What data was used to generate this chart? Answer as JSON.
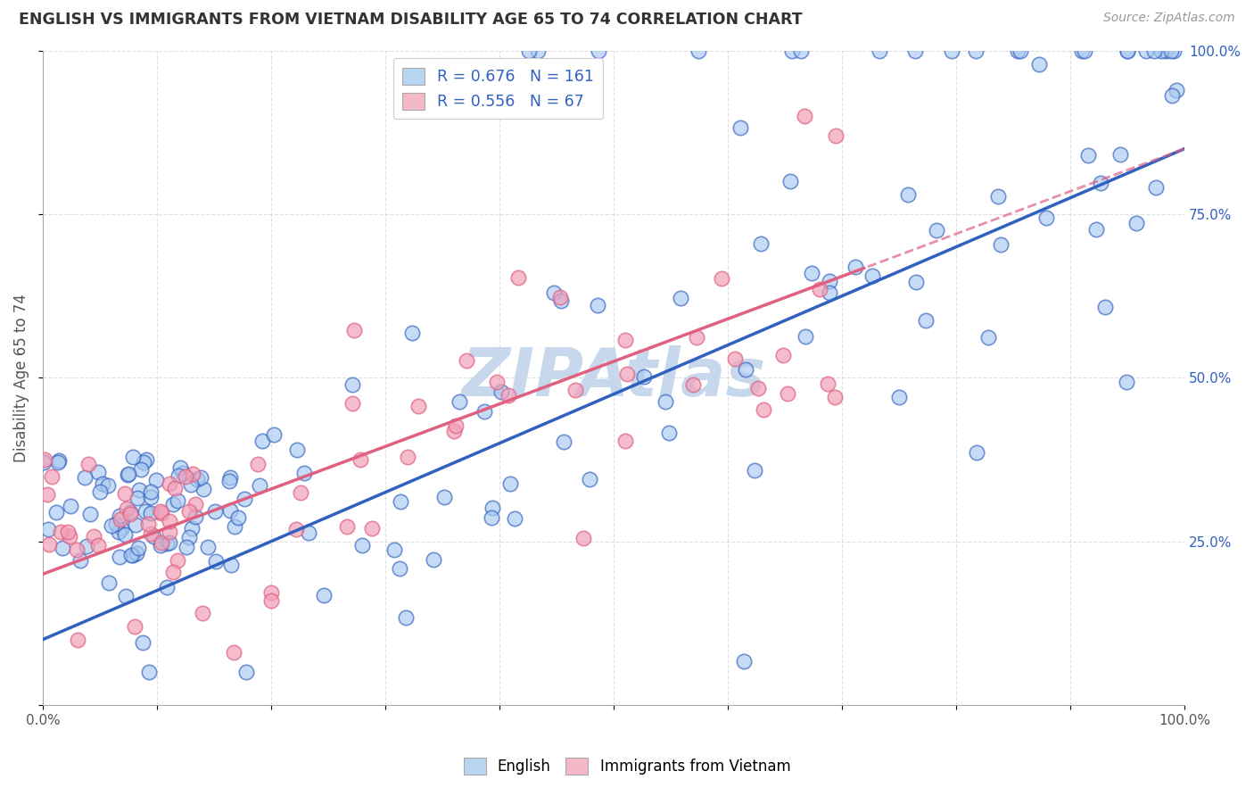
{
  "title": "ENGLISH VS IMMIGRANTS FROM VIETNAM DISABILITY AGE 65 TO 74 CORRELATION CHART",
  "source": "Source: ZipAtlas.com",
  "xlabel": "",
  "ylabel": "Disability Age 65 to 74",
  "watermark": "ZIPAtlas",
  "english_R": 0.676,
  "english_N": 161,
  "vietnam_R": 0.556,
  "vietnam_N": 67,
  "english_color": "#A8C8F0",
  "vietnam_color": "#F0A0B8",
  "english_line_color": "#3060C0",
  "vietnam_line_color": "#E06080",
  "english_slope": 0.75,
  "english_intercept": 0.1,
  "vietnam_slope": 0.65,
  "vietnam_intercept": 0.2,
  "xlim": [
    0.0,
    1.0
  ],
  "ylim": [
    0.0,
    1.0
  ],
  "xticklabels": [
    "0.0%",
    "",
    "",
    "",
    "",
    "",
    "",
    "",
    "",
    "",
    "100.0%"
  ],
  "yticklabels_right": [
    "",
    "25.0%",
    "50.0%",
    "75.0%",
    "100.0%"
  ],
  "background_color": "#FFFFFF",
  "grid_color": "#CCCCCC",
  "title_color": "#333333",
  "source_color": "#999999",
  "watermark_color": "#C8D8EC",
  "legend_box_color_english": "#B8D4F0",
  "legend_box_color_vietnam": "#F4B8C8"
}
